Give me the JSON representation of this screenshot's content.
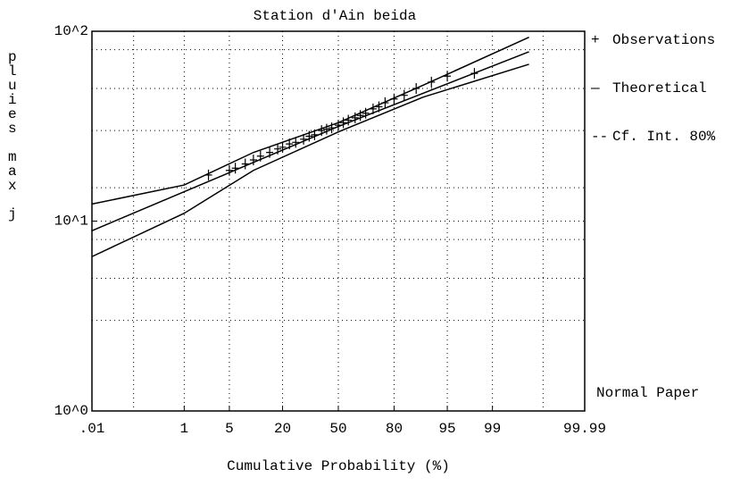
{
  "chart_data": {
    "type": "probability",
    "title": "Station d'Ain beida",
    "x_label": "Cumulative Probability (%)",
    "y_label": "pluies max j",
    "annotation": "Normal Paper",
    "xscale": "normal",
    "yscale": "log",
    "grid": true,
    "legend": "right",
    "color": "#000000",
    "xlim": [
      0.01,
      99.99
    ],
    "xticks": [
      {
        "value": 0.01,
        "label": ".01"
      },
      1,
      5,
      20,
      50,
      80,
      95,
      99,
      99.99
    ],
    "xminorticks": [
      0.1,
      99.9
    ],
    "ylim": [
      1,
      100
    ],
    "yticks": [
      {
        "value": 1,
        "label": "10^0"
      },
      {
        "value": 10,
        "label": "10^1"
      },
      {
        "value": 100,
        "label": "10^2"
      }
    ],
    "yminorticks": [
      80,
      50,
      30,
      15,
      8,
      5,
      3
    ],
    "series": [
      {
        "name": "Observations",
        "marker": "+",
        "x": [
          2.5,
          5,
          6,
          8,
          10,
          12,
          15,
          18,
          20,
          23,
          26,
          30,
          33,
          36,
          40,
          43,
          46,
          50,
          53,
          56,
          60,
          63,
          66,
          70,
          73,
          76,
          80,
          84,
          88,
          92,
          95,
          98
        ],
        "values": [
          17.5,
          18.5,
          19,
          20,
          21,
          22,
          23,
          24,
          24.5,
          25.5,
          26,
          27,
          28,
          28.5,
          30,
          30.5,
          31,
          32,
          33,
          34,
          35,
          36,
          37,
          39,
          40,
          42,
          44,
          46,
          50,
          54,
          58,
          60
        ]
      },
      {
        "name": "Theoretical",
        "marker": "—",
        "x": [
          0.01,
          50,
          99.8
        ],
        "values": [
          8.9,
          31.5,
          78
        ]
      },
      {
        "name": "Cf. Int. 80%",
        "marker": "--",
        "x": [
          0.01,
          1,
          10,
          50,
          90,
          99.8
        ],
        "lower": [
          6.5,
          11,
          18.5,
          29.5,
          45,
          67
        ],
        "upper": [
          12.3,
          15.5,
          23,
          33,
          52,
          93
        ]
      }
    ]
  }
}
